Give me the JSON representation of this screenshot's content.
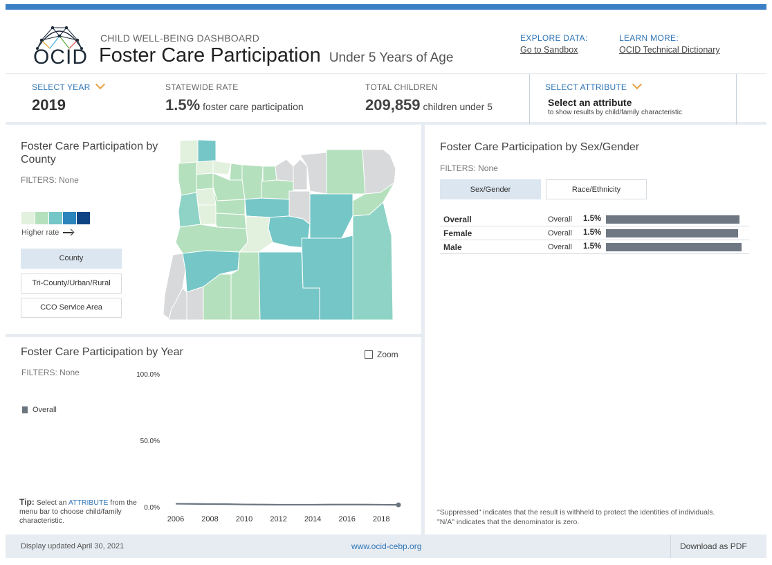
{
  "header": {
    "logo_text": "OCID",
    "subtitle": "CHILD WELL-BEING DASHBOARD",
    "title": "Foster Care Participation",
    "title_small": "Under 5 Years of Age",
    "explore_label": "EXPLORE DATA:",
    "explore_link": "Go to Sandbox",
    "learn_label": "LEARN MORE:",
    "learn_link": "OCID Technical Dictionary"
  },
  "stats": {
    "year_label": "SELECT YEAR",
    "year_value": "2019",
    "rate_label": "STATEWIDE RATE",
    "rate_value": "1.5%",
    "rate_desc": "foster care participation",
    "total_label": "TOTAL CHILDREN",
    "total_value": "209,859",
    "total_desc": "children under 5",
    "attribute_label": "SELECT ATTRIBUTE",
    "attribute_main": "Select an attribute",
    "attribute_sub": "to show results by child/family characteristic"
  },
  "county_panel": {
    "title": "Foster Care Participation by County",
    "filters": "FILTERS: None",
    "legend_caption": "Higher rate",
    "legend_colors": [
      "#e2f1de",
      "#b5e0bd",
      "#74c6c7",
      "#2c84bd",
      "#0e4484"
    ],
    "buttons": [
      "County",
      "Tri-County/Urban/Rural",
      "CCO Service Area"
    ],
    "active_button": "County"
  },
  "year_panel": {
    "title": "Foster Care Participation by Year",
    "filters": "FILTERS: None",
    "zoom_label": "Zoom",
    "legend_label": "Overall",
    "tip_bold": "Tip:",
    "tip_pre": " Select an ",
    "tip_link": "ATTRIBUTE",
    "tip_post": " from the menu bar to choose child/family characteristic."
  },
  "chart_data": {
    "type": "line",
    "title": "Foster Care Participation by Year",
    "x": [
      2006,
      2007,
      2008,
      2009,
      2010,
      2011,
      2012,
      2013,
      2014,
      2015,
      2016,
      2017,
      2018,
      2019
    ],
    "series": [
      {
        "name": "Overall",
        "values": [
          2.3,
          2.2,
          2.1,
          2.0,
          1.8,
          1.7,
          1.6,
          1.6,
          1.6,
          1.7,
          1.7,
          1.7,
          1.6,
          1.5
        ]
      }
    ],
    "x_ticks": [
      "2006",
      "2008",
      "2010",
      "2012",
      "2014",
      "2016",
      "2018"
    ],
    "y_ticks": [
      "0.0%",
      "50.0%",
      "100.0%"
    ],
    "ylim": [
      0,
      100
    ],
    "xlim": [
      2006,
      2019
    ],
    "grid": false,
    "line_color": "#6b7580"
  },
  "sex_panel": {
    "title": "Foster Care Participation by Sex/Gender",
    "filters": "FILTERS: None",
    "tabs": [
      "Sex/Gender",
      "Race/Ethnicity"
    ],
    "active_tab": "Sex/Gender",
    "rows": [
      {
        "label": "Overall",
        "group": "Overall",
        "value": "1.5%",
        "rate": 1.5
      },
      {
        "label": "Female",
        "group": "Overall",
        "value": "1.5%",
        "rate": 1.48
      },
      {
        "label": "Male",
        "group": "Overall",
        "value": "1.5%",
        "rate": 1.52
      }
    ],
    "bar_max_rate": 1.52,
    "note1": "\"Suppressed\" indicates that the result is withheld to protect the identities of individuals.",
    "note2": "\"N/A\" indicates that the denominator is zero."
  },
  "map_colors": {
    "gray": "#d8d9da",
    "c1": "#e2f1de",
    "c2": "#b5e0bd",
    "c2b": "#a4dbbf",
    "c3": "#74c6c7",
    "c3b": "#8ed3c5"
  },
  "footer": {
    "updated": "Display updated April 30, 2021",
    "url": "www.ocid-cebp.org",
    "pdf": "Download as PDF"
  }
}
